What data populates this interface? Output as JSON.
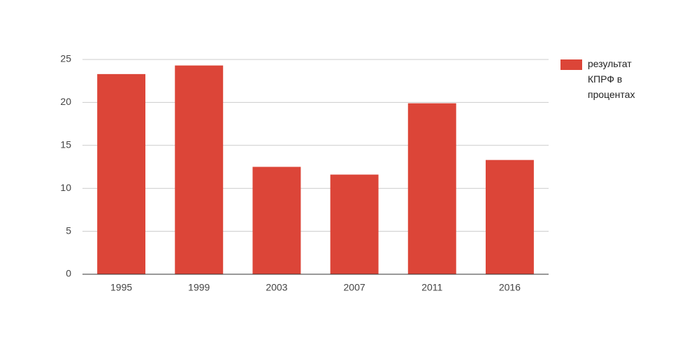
{
  "chart_data": {
    "type": "bar",
    "categories": [
      "1995",
      "1999",
      "2003",
      "2007",
      "2011",
      "2016"
    ],
    "series": [
      {
        "name": "результат КПРФ в процентах",
        "color": "#dc4538",
        "values": [
          23.3,
          24.3,
          12.5,
          11.6,
          19.9,
          13.3
        ]
      }
    ],
    "ylim": [
      0,
      25
    ],
    "yticks": [
      0,
      5,
      10,
      15,
      20,
      25
    ],
    "grid": true,
    "legend": "right"
  }
}
